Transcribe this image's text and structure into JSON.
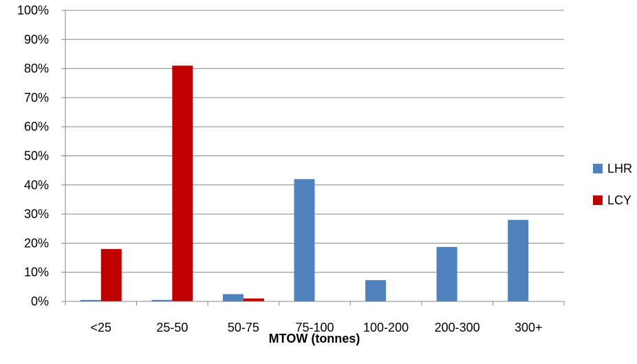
{
  "chart_data": {
    "type": "bar",
    "xlabel": "MTOW (tonnes)",
    "ylabel": "",
    "categories": [
      "<25",
      "25-50",
      "50-75",
      "75-100",
      "100-200",
      "200-300",
      "300+"
    ],
    "series": [
      {
        "name": "LHR",
        "color": "#4F81BD",
        "values": [
          0.5,
          0.5,
          2.5,
          42,
          7.3,
          18.7,
          28
        ]
      },
      {
        "name": "LCY",
        "color": "#C00000",
        "values": [
          18,
          81,
          1,
          0,
          0,
          0,
          0
        ]
      }
    ],
    "ylim": [
      0,
      100
    ],
    "yticks": [
      "0%",
      "10%",
      "20%",
      "30%",
      "40%",
      "50%",
      "60%",
      "70%",
      "80%",
      "90%",
      "100%"
    ],
    "grid": true,
    "legend_position": "right"
  }
}
